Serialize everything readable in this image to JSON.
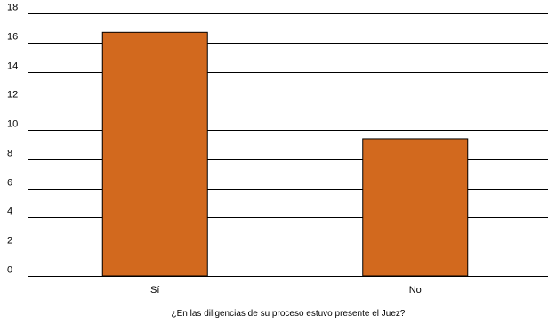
{
  "chart_data": {
    "type": "bar",
    "categories": [
      "Sí",
      "No"
    ],
    "values": [
      16.7,
      9.4
    ],
    "title": "",
    "xlabel": "¿En las diligencias de su proceso estuvo presente el Juez?",
    "ylabel": "",
    "ylim": [
      0,
      18
    ],
    "yticks": [
      0,
      2,
      4,
      6,
      8,
      10,
      12,
      14,
      16,
      18
    ],
    "grid": true,
    "legend": "none",
    "bar_color": "#D2691E",
    "bar_edge_color": "#000000"
  }
}
